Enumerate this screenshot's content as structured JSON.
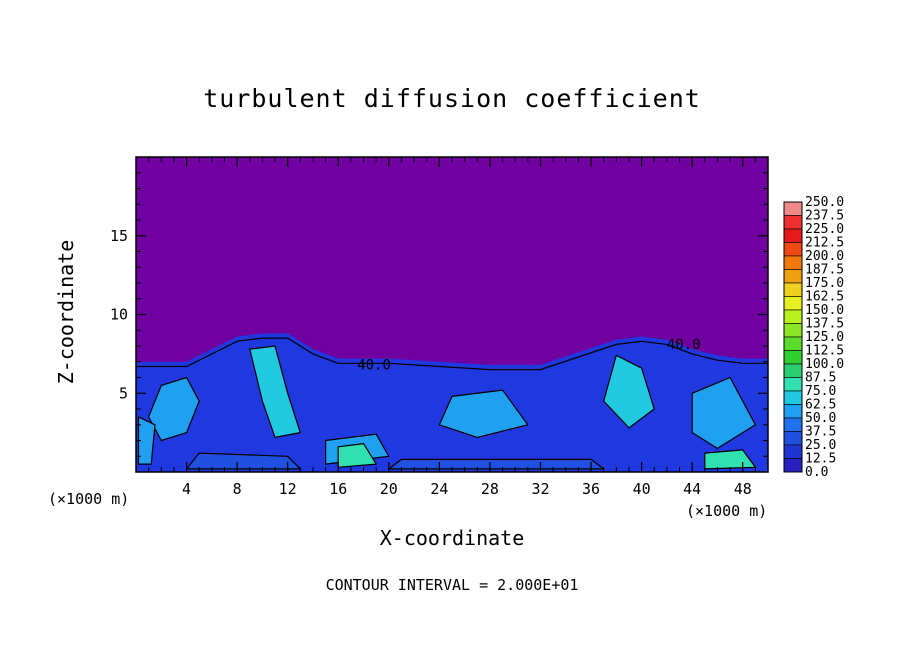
{
  "chart_data": {
    "type": "heatmap",
    "title": "turbulent diffusion coefficient",
    "xlabel": "X-coordinate",
    "ylabel": "Z-coordinate",
    "x_unit_label": "(×1000 m)",
    "footer": "CONTOUR INTERVAL = 2.000E+01",
    "xlim": [
      0,
      50
    ],
    "ylim": [
      0,
      20
    ],
    "x_ticks": [
      4,
      8,
      12,
      16,
      20,
      24,
      28,
      32,
      36,
      40,
      44,
      48
    ],
    "y_ticks": [
      5,
      10,
      15
    ],
    "contour_interval": 20,
    "contour_labels": [
      {
        "text": "40.0",
        "x": 17.5,
        "z": 6.5
      },
      {
        "text": "40.0",
        "x": 42.0,
        "z": 7.8
      }
    ],
    "boundary_layer_top_km": [
      [
        0,
        7.0
      ],
      [
        4,
        7.0
      ],
      [
        8,
        8.6
      ],
      [
        10,
        8.8
      ],
      [
        12,
        8.8
      ],
      [
        14,
        7.8
      ],
      [
        16,
        7.2
      ],
      [
        20,
        7.2
      ],
      [
        24,
        7.0
      ],
      [
        28,
        6.8
      ],
      [
        32,
        6.8
      ],
      [
        35,
        7.6
      ],
      [
        38,
        8.4
      ],
      [
        40,
        8.6
      ],
      [
        42,
        8.4
      ],
      [
        44,
        7.8
      ],
      [
        46,
        7.4
      ],
      [
        48,
        7.2
      ],
      [
        50,
        7.2
      ]
    ],
    "colorbar": {
      "levels": [
        "250.0",
        "237.5",
        "225.0",
        "212.5",
        "200.0",
        "187.5",
        "175.0",
        "162.5",
        "150.0",
        "137.5",
        "125.0",
        "112.5",
        "100.0",
        "87.5",
        "75.0",
        "62.5",
        "50.0",
        "37.5",
        "25.0",
        "12.5",
        "0.0"
      ],
      "colors": [
        "#f08a8a",
        "#ee3030",
        "#e61a1a",
        "#f04a14",
        "#f07a10",
        "#f0a010",
        "#f0d020",
        "#e6f020",
        "#b8f020",
        "#8ce628",
        "#5adc2a",
        "#30d030",
        "#2ad070",
        "#30e0b0",
        "#20c8e0",
        "#20a0f0",
        "#2070f0",
        "#2050e0",
        "#2036d0",
        "#2a20c0",
        "#7000a0"
      ]
    },
    "background_value_color": "#7000a0",
    "grid": false
  }
}
